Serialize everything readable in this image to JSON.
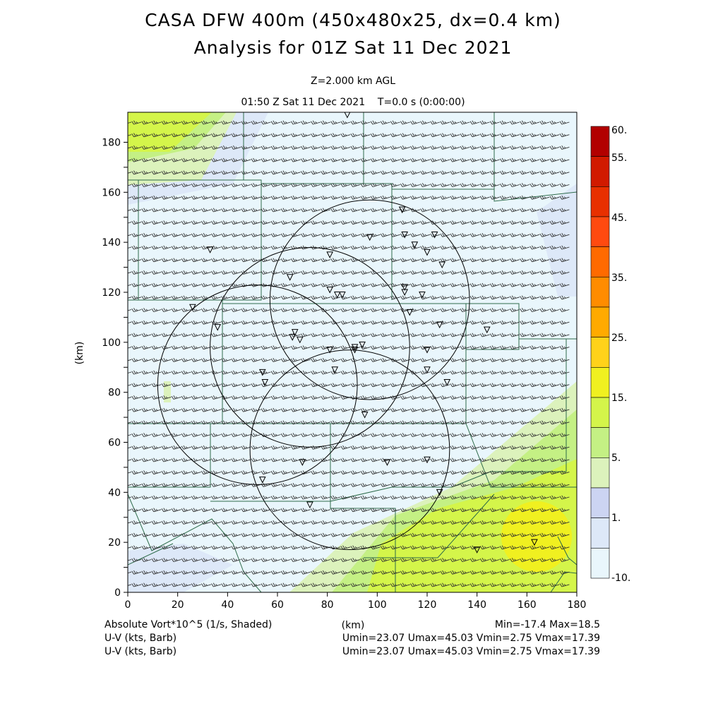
{
  "header": {
    "title_line1": "CASA DFW 400m (450x480x25, dx=0.4 km)",
    "title_line2": "Analysis for 01Z Sat 11 Dec 2021",
    "level": "Z=2.000 km AGL",
    "valid_time": "01:50 Z Sat 11 Dec 2021    T=0.0 s (0:00:00)"
  },
  "chart_data": {
    "type": "heatmap",
    "xlabel": "(km)",
    "ylabel": "(km)",
    "xlim": [
      0,
      180
    ],
    "ylim": [
      0,
      192
    ],
    "xticks": [
      0,
      20,
      40,
      60,
      80,
      100,
      120,
      140,
      160,
      180
    ],
    "yticks": [
      0,
      20,
      40,
      60,
      80,
      100,
      120,
      140,
      160,
      180
    ],
    "shaded_field": "Absolute Vort*10^5 (1/s, Shaded)",
    "vector_fields": [
      "U-V (kts, Barb)",
      "U-V (kts, Barb)"
    ],
    "stats": {
      "vort": "Min=-17.4 Max=18.5",
      "uv1": "Umin=23.07 Umax=45.03 Vmin=2.75 Vmax=17.39",
      "uv2": "Umin=23.07 Umax=45.03 Vmin=2.75 Vmax=17.39"
    },
    "colorbar": {
      "labels": [
        "60.",
        "55.",
        "45.",
        "35.",
        "25.",
        "15.",
        "5.",
        "1.",
        "-10."
      ],
      "colors": [
        "#b20000",
        "#d11a00",
        "#e83000",
        "#ff4a10",
        "#ff6a00",
        "#ff8c00",
        "#ffaa00",
        "#ffd21a",
        "#f0f020",
        "#d4f54a",
        "#c4f084",
        "#dcf2bc",
        "#ccd4f2",
        "#dde8f8",
        "#e9f6fc"
      ]
    },
    "wind": {
      "u_kts": 34,
      "v_kts": 10
    },
    "radars": [
      {
        "x": 52,
        "y": 83,
        "range_km": 40
      },
      {
        "x": 97,
        "y": 117,
        "range_km": 40
      },
      {
        "x": 73,
        "y": 98,
        "range_km": 40
      },
      {
        "x": 89,
        "y": 57,
        "range_km": 40
      }
    ],
    "stations": [
      [
        88,
        191
      ],
      [
        110,
        153
      ],
      [
        111,
        143
      ],
      [
        115,
        139
      ],
      [
        123,
        143
      ],
      [
        97,
        142
      ],
      [
        120,
        136
      ],
      [
        126,
        131
      ],
      [
        33,
        137
      ],
      [
        81,
        135
      ],
      [
        65,
        126
      ],
      [
        81,
        121
      ],
      [
        84,
        119
      ],
      [
        86,
        119
      ],
      [
        111,
        122
      ],
      [
        111,
        120
      ],
      [
        118,
        119
      ],
      [
        113,
        112
      ],
      [
        26,
        114
      ],
      [
        36,
        106
      ],
      [
        125,
        107
      ],
      [
        144,
        105
      ],
      [
        67,
        104
      ],
      [
        66,
        102
      ],
      [
        69,
        101
      ],
      [
        81,
        97
      ],
      [
        91,
        98
      ],
      [
        91,
        97
      ],
      [
        94,
        99
      ],
      [
        120,
        97
      ],
      [
        83,
        89
      ],
      [
        120,
        89
      ],
      [
        128,
        84
      ],
      [
        54,
        88
      ],
      [
        55,
        84
      ],
      [
        95,
        71
      ],
      [
        70,
        52
      ],
      [
        104,
        52
      ],
      [
        120,
        53
      ],
      [
        54,
        45
      ],
      [
        125,
        40
      ],
      [
        73,
        35
      ],
      [
        140,
        17
      ],
      [
        163,
        20
      ]
    ]
  }
}
